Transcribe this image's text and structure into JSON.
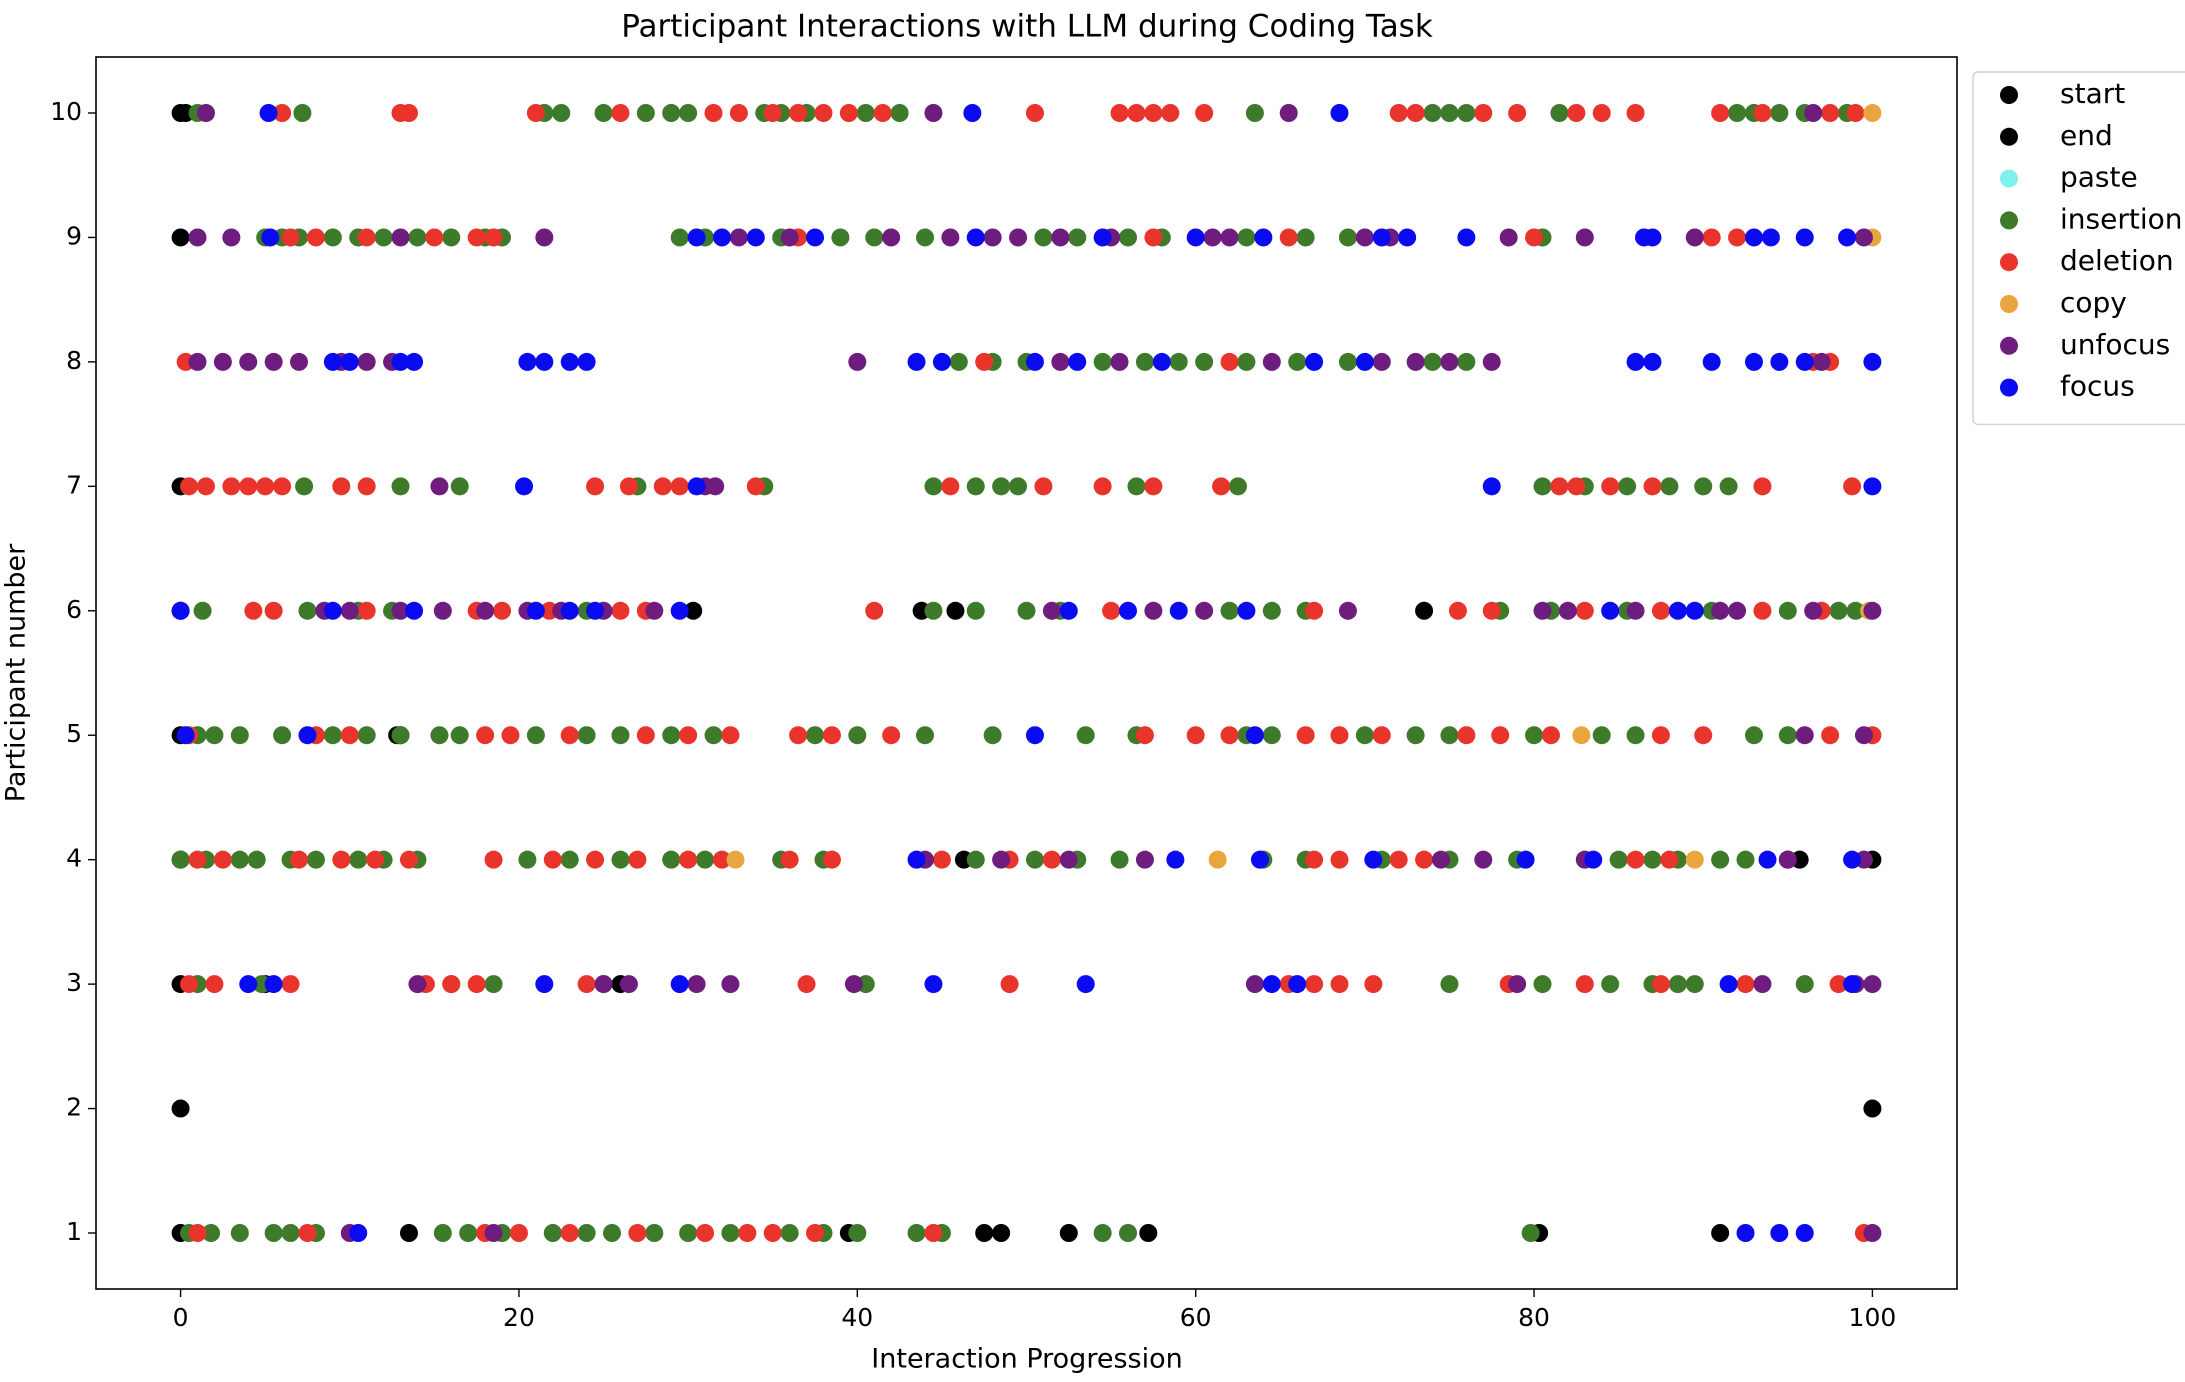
{
  "chart_data": {
    "type": "scatter",
    "title": "Participant Interactions with LLM during Coding Task",
    "x_label": "Interaction Progression",
    "y_label": "Participant number",
    "xlim": [
      -5,
      105
    ],
    "ylim": [
      0.55,
      10.45
    ],
    "xticks": [
      0,
      20,
      40,
      60,
      80,
      100
    ],
    "yticks": [
      1,
      2,
      3,
      4,
      5,
      6,
      7,
      8,
      9,
      10
    ],
    "legend_position": "upper right",
    "series": [
      {
        "name": "start",
        "color": "#000000",
        "x": [
          0,
          0,
          0,
          0,
          0,
          0,
          0,
          0,
          0
        ],
        "y": [
          10,
          9,
          7,
          6,
          5,
          4,
          3,
          2,
          1
        ]
      },
      {
        "name": "end",
        "color": "#000000",
        "x": [
          100,
          30.3,
          73.5,
          43.8,
          45.8,
          95.7,
          100,
          95,
          57.2,
          80.3,
          91,
          47.5,
          48.5,
          52.5,
          13.5,
          13,
          12.8,
          26,
          5,
          46.3,
          39.5,
          0.3
        ],
        "y": [
          2,
          6,
          6,
          6,
          6,
          4,
          4,
          4,
          1,
          1,
          1,
          1,
          1,
          1,
          1,
          5,
          5,
          3,
          3,
          4,
          1,
          10
        ]
      },
      {
        "name": "paste",
        "color": "#7ff2ee",
        "x": [
          14.2
        ],
        "y": [
          3
        ]
      },
      {
        "name": "insertion",
        "color": "#3d7b2b",
        "x": [
          1,
          7.2,
          21.5,
          22.5,
          25,
          27.5,
          29,
          30,
          34.5,
          35.5,
          37,
          40.5,
          42.5,
          63.5,
          74,
          75,
          76,
          81.5,
          92,
          93,
          94.5,
          96,
          98.5,
          5,
          6,
          7,
          9,
          10.5,
          12,
          14,
          16,
          18,
          19,
          29.5,
          31,
          35.5,
          39,
          41,
          44,
          51,
          53,
          56,
          58,
          63,
          66.5,
          69,
          80.5,
          46,
          48,
          50,
          54.5,
          57,
          59,
          60.5,
          63,
          66,
          69,
          74,
          76,
          7.3,
          13,
          16.5,
          27,
          34.5,
          44.5,
          47,
          48.5,
          49.5,
          56.5,
          62.5,
          80.5,
          83,
          85.5,
          88,
          90,
          91.5,
          1.3,
          7.5,
          10.5,
          12.5,
          24,
          44.5,
          47,
          50,
          52,
          62,
          64.5,
          66.5,
          78,
          81,
          85.5,
          90.5,
          95,
          98,
          99,
          1,
          2,
          3.5,
          6,
          9,
          11,
          13,
          15.3,
          16.5,
          21,
          24,
          26,
          29,
          31.5,
          37.5,
          40,
          44,
          48,
          53.5,
          56.5,
          63,
          64.5,
          70,
          73,
          75,
          80,
          84,
          86,
          93,
          95,
          0,
          1.5,
          3.5,
          4.5,
          6.5,
          8,
          10.5,
          12,
          14,
          20.5,
          23,
          26,
          29,
          31,
          35.5,
          38,
          47,
          50.5,
          53,
          55.5,
          64,
          66.5,
          71,
          75,
          79,
          85,
          87,
          88.5,
          91,
          92.5,
          1,
          4.8,
          16,
          18.5,
          25,
          40.5,
          75,
          84.5,
          87,
          88.5,
          89.5,
          80.5,
          96,
          0.5,
          1.8,
          3.5,
          5.5,
          6.5,
          8,
          15.5,
          17,
          19,
          22,
          24,
          25.5,
          28,
          30,
          32.5,
          36,
          38,
          40,
          43.5,
          45,
          54.5,
          56,
          79.8
        ],
        "y": [
          10,
          10,
          10,
          10,
          10,
          10,
          10,
          10,
          10,
          10,
          10,
          10,
          10,
          10,
          10,
          10,
          10,
          10,
          10,
          10,
          10,
          10,
          10,
          9,
          9,
          9,
          9,
          9,
          9,
          9,
          9,
          9,
          9,
          9,
          9,
          9,
          9,
          9,
          9,
          9,
          9,
          9,
          9,
          9,
          9,
          9,
          9,
          8,
          8,
          8,
          8,
          8,
          8,
          8,
          8,
          8,
          8,
          8,
          8,
          7,
          7,
          7,
          7,
          7,
          7,
          7,
          7,
          7,
          7,
          7,
          7,
          7,
          7,
          7,
          7,
          7,
          6,
          6,
          6,
          6,
          6,
          6,
          6,
          6,
          6,
          6,
          6,
          6,
          6,
          6,
          6,
          6,
          6,
          6,
          6,
          5,
          5,
          5,
          5,
          5,
          5,
          5,
          5,
          5,
          5,
          5,
          5,
          5,
          5,
          5,
          5,
          5,
          5,
          5,
          5,
          5,
          5,
          5,
          5,
          5,
          5,
          5,
          5,
          5,
          5,
          4,
          4,
          4,
          4,
          4,
          4,
          4,
          4,
          4,
          4,
          4,
          4,
          4,
          4,
          4,
          4,
          4,
          4,
          4,
          4,
          4,
          4,
          4,
          4,
          4,
          4,
          4,
          4,
          4,
          4,
          3,
          3,
          3,
          3,
          3,
          3,
          3,
          3,
          3,
          3,
          3,
          3,
          3,
          1,
          1,
          1,
          1,
          1,
          1,
          1,
          1,
          1,
          1,
          1,
          1,
          1,
          1,
          1,
          1,
          1,
          1,
          1,
          1,
          1,
          1,
          1
        ]
      },
      {
        "name": "deletion",
        "color": "#e8342a",
        "x": [
          6,
          13,
          13.5,
          21,
          26,
          31.5,
          33,
          35,
          36.5,
          38,
          39.5,
          41.5,
          50.5,
          55.5,
          56.5,
          57.5,
          58.5,
          60.5,
          72,
          73,
          77,
          79,
          82.5,
          84,
          86,
          91,
          93.5,
          97.5,
          99,
          6.5,
          8,
          11,
          15,
          17.5,
          18.5,
          36.5,
          57.5,
          65.5,
          80,
          90.5,
          92,
          0.3,
          47.5,
          62,
          96.5,
          97.5,
          0.5,
          1.5,
          3,
          4,
          5,
          6,
          9.5,
          11,
          24.5,
          26.5,
          28.5,
          29.5,
          34,
          45.5,
          51,
          54.5,
          57.5,
          61.5,
          81.5,
          82.5,
          84.5,
          87,
          93.5,
          98.8,
          4.3,
          5.5,
          11,
          17.5,
          19,
          21.8,
          26,
          27.5,
          41,
          55,
          67,
          75.5,
          77.5,
          83,
          87.5,
          93.5,
          97,
          0.5,
          8,
          10,
          18,
          19.5,
          23,
          27.5,
          30,
          32.5,
          36.5,
          38.5,
          42,
          57,
          60,
          62,
          66.5,
          68.5,
          71,
          76,
          78,
          81,
          87.5,
          90,
          97.5,
          100,
          1,
          2.5,
          7,
          9.5,
          11.5,
          13.5,
          18.5,
          22,
          24.5,
          27,
          30,
          32,
          36,
          38.5,
          45,
          49,
          51.5,
          67,
          68.5,
          72,
          73.5,
          86,
          88,
          0.5,
          2,
          6.5,
          14.5,
          16,
          17.5,
          24,
          37,
          49,
          65.5,
          67,
          68.5,
          70.5,
          78.5,
          83,
          87.5,
          92.5,
          98,
          1,
          7.5,
          18,
          20,
          23,
          27,
          31,
          33.5,
          35,
          37.5,
          44.5,
          99.5
        ],
        "y": [
          10,
          10,
          10,
          10,
          10,
          10,
          10,
          10,
          10,
          10,
          10,
          10,
          10,
          10,
          10,
          10,
          10,
          10,
          10,
          10,
          10,
          10,
          10,
          10,
          10,
          10,
          10,
          10,
          10,
          9,
          9,
          9,
          9,
          9,
          9,
          9,
          9,
          9,
          9,
          9,
          9,
          8,
          8,
          8,
          8,
          8,
          7,
          7,
          7,
          7,
          7,
          7,
          7,
          7,
          7,
          7,
          7,
          7,
          7,
          7,
          7,
          7,
          7,
          7,
          7,
          7,
          7,
          7,
          7,
          7,
          6,
          6,
          6,
          6,
          6,
          6,
          6,
          6,
          6,
          6,
          6,
          6,
          6,
          6,
          6,
          6,
          6,
          5,
          5,
          5,
          5,
          5,
          5,
          5,
          5,
          5,
          5,
          5,
          5,
          5,
          5,
          5,
          5,
          5,
          5,
          5,
          5,
          5,
          5,
          5,
          5,
          5,
          4,
          4,
          4,
          4,
          4,
          4,
          4,
          4,
          4,
          4,
          4,
          4,
          4,
          4,
          4,
          4,
          4,
          4,
          4,
          4,
          4,
          4,
          4,
          3,
          3,
          3,
          3,
          3,
          3,
          3,
          3,
          3,
          3,
          3,
          3,
          3,
          3,
          3,
          3,
          3,
          3,
          1,
          1,
          1,
          1,
          1,
          1,
          1,
          1,
          1,
          1,
          1,
          1
        ]
      },
      {
        "name": "copy",
        "color": "#eaa63e",
        "x": [
          100,
          100,
          82.8,
          61.3,
          32.8,
          89.5,
          99.8
        ],
        "y": [
          10,
          9,
          5,
          4,
          4,
          4,
          6
        ]
      },
      {
        "name": "unfocus",
        "color": "#6e1d7e",
        "x": [
          1.5,
          44.5,
          65.5,
          96.5,
          1,
          3,
          13,
          21.5,
          33,
          36,
          42,
          45.5,
          48,
          49.5,
          52,
          55,
          61,
          62,
          70,
          71.5,
          78.5,
          83,
          89.5,
          99.5,
          1,
          2.5,
          4,
          5.5,
          7,
          9.5,
          11,
          12.5,
          40,
          52,
          55.5,
          64.5,
          71,
          73,
          75,
          77.5,
          97,
          15.3,
          31,
          31.6,
          8.5,
          10,
          13,
          15.5,
          18,
          20.5,
          22.5,
          25,
          28,
          51.5,
          57.5,
          60.5,
          69,
          80.5,
          82,
          86,
          91,
          92,
          96.5,
          100,
          96,
          99.5,
          44,
          48.5,
          52.5,
          57,
          74.5,
          77,
          83,
          95,
          99.5,
          14,
          25,
          26.5,
          30.5,
          32.5,
          39.8,
          63.5,
          79,
          93.5,
          99,
          100,
          10,
          18.5,
          100
        ],
        "y": [
          10,
          10,
          10,
          10,
          9,
          9,
          9,
          9,
          9,
          9,
          9,
          9,
          9,
          9,
          9,
          9,
          9,
          9,
          9,
          9,
          9,
          9,
          9,
          9,
          8,
          8,
          8,
          8,
          8,
          8,
          8,
          8,
          8,
          8,
          8,
          8,
          8,
          8,
          8,
          8,
          8,
          7,
          7,
          7,
          6,
          6,
          6,
          6,
          6,
          6,
          6,
          6,
          6,
          6,
          6,
          6,
          6,
          6,
          6,
          6,
          6,
          6,
          6,
          6,
          5,
          5,
          4,
          4,
          4,
          4,
          4,
          4,
          4,
          4,
          4,
          3,
          3,
          3,
          3,
          3,
          3,
          3,
          3,
          3,
          3,
          3,
          1,
          1,
          1
        ]
      },
      {
        "name": "focus",
        "color": "#0b0bf2",
        "x": [
          5.2,
          46.8,
          68.5,
          5.3,
          30.5,
          32,
          34,
          37.5,
          47,
          54.5,
          60,
          64,
          71,
          72.5,
          76,
          86.5,
          87,
          93,
          94,
          96,
          98.5,
          9,
          10,
          13,
          13.8,
          20.5,
          21.5,
          23,
          24,
          43.5,
          45,
          50.5,
          53,
          58,
          67,
          70,
          86,
          87,
          90.5,
          93,
          94.5,
          96,
          100,
          20.3,
          30.5,
          77.5,
          100,
          0,
          9,
          13.8,
          21,
          23,
          24.5,
          29.5,
          52.5,
          56,
          59,
          63,
          84.5,
          88.5,
          89.5,
          0.3,
          7.5,
          50.5,
          63.5,
          43.5,
          58.8,
          63.8,
          70.5,
          79.5,
          83.5,
          93.8,
          98.8,
          4,
          5.5,
          21.5,
          29.5,
          44.5,
          53.5,
          64.5,
          66,
          91.5,
          98.8,
          10.5,
          92.5,
          94.5,
          96
        ],
        "y": [
          10,
          10,
          10,
          9,
          9,
          9,
          9,
          9,
          9,
          9,
          9,
          9,
          9,
          9,
          9,
          9,
          9,
          9,
          9,
          9,
          9,
          8,
          8,
          8,
          8,
          8,
          8,
          8,
          8,
          8,
          8,
          8,
          8,
          8,
          8,
          8,
          8,
          8,
          8,
          8,
          8,
          8,
          8,
          7,
          7,
          7,
          7,
          6,
          6,
          6,
          6,
          6,
          6,
          6,
          6,
          6,
          6,
          6,
          6,
          6,
          6,
          5,
          5,
          5,
          5,
          4,
          4,
          4,
          4,
          4,
          4,
          4,
          4,
          3,
          3,
          3,
          3,
          3,
          3,
          3,
          3,
          3,
          3,
          1,
          1,
          1,
          1
        ]
      }
    ]
  }
}
